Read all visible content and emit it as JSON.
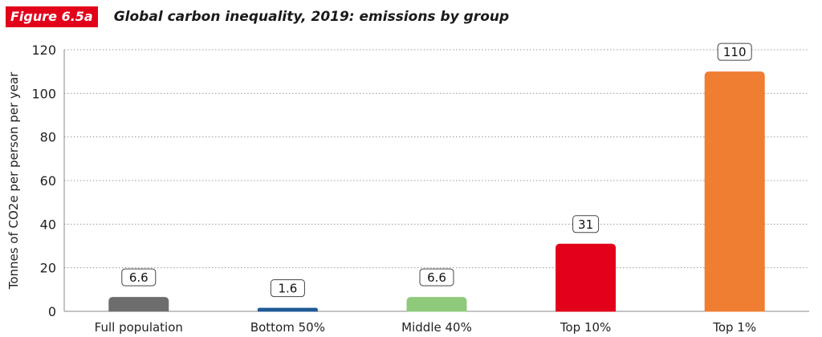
{
  "figure": {
    "label": "Figure 6.5a",
    "title": "Global carbon inequality, 2019: emissions by group"
  },
  "chart_data": {
    "type": "bar",
    "categories": [
      "Full population",
      "Bottom 50%",
      "Middle 40%",
      "Top 10%",
      "Top 1%"
    ],
    "values": [
      6.6,
      1.6,
      6.6,
      31,
      110
    ],
    "data_labels": [
      "6.6",
      "1.6",
      "6.6",
      "31",
      "110"
    ],
    "colors": [
      "#6d6d6d",
      "#1f5a96",
      "#8fc97c",
      "#e2001a",
      "#ef7d32"
    ],
    "ylabel": "Tonnes of CO2e per person per year",
    "xlabel": "",
    "ylim": [
      0,
      120
    ],
    "yticks": [
      0,
      20,
      40,
      60,
      80,
      100,
      120
    ],
    "grid": true
  }
}
